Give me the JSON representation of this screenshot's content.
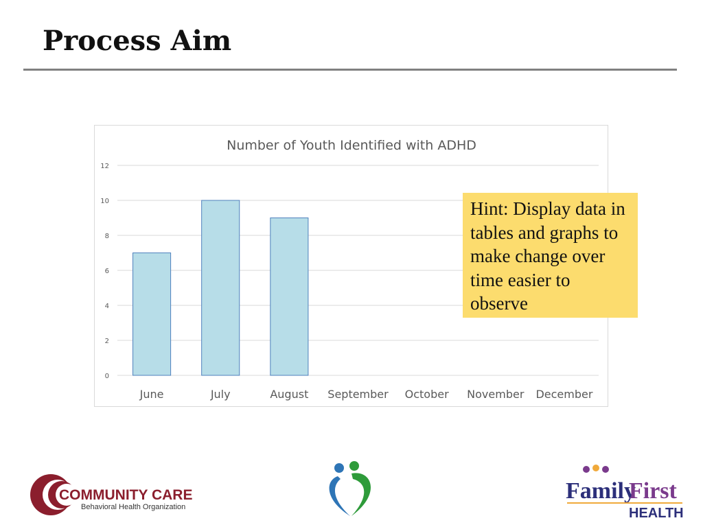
{
  "slide": {
    "title": "Process Aim"
  },
  "hint": {
    "text": "Hint: Display data in tables and graphs to make change over time easier to observe"
  },
  "chart_data": {
    "type": "bar",
    "title": "Number of Youth Identified with ADHD",
    "xlabel": "",
    "ylabel": "",
    "categories": [
      "June",
      "July",
      "August",
      "September",
      "October",
      "November",
      "December"
    ],
    "values": [
      7,
      10,
      9,
      null,
      null,
      null,
      null
    ],
    "ylim": [
      0,
      12
    ],
    "yticks": [
      0,
      2,
      4,
      6,
      8,
      10,
      12
    ],
    "grid": true,
    "legend": "none",
    "colors": {
      "bar_fill": "#b7dde8",
      "bar_stroke": "#4f81bd",
      "grid": "#d9d9d9"
    }
  },
  "logos": {
    "community_care": {
      "name": "COMMUNITY CARE",
      "sub": "Behavioral Health Organization"
    },
    "family_first": {
      "name_a": "Family",
      "name_b": "First",
      "sub": "HEALTH"
    }
  }
}
